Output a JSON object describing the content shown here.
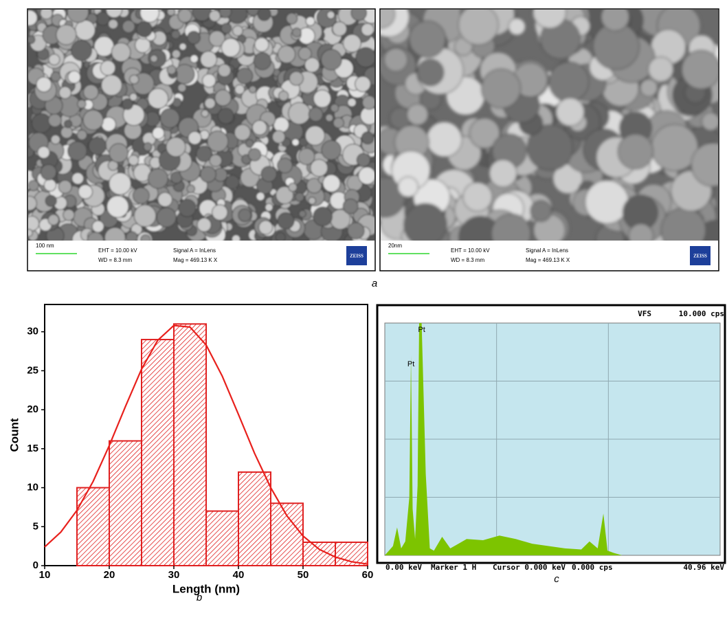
{
  "sem_panels": [
    {
      "scale": "100 nm",
      "eht": "EHT = 10.00 kV",
      "wd": "WD = 8.3 mm",
      "signal": "Signal A = InLens",
      "mag": "Mag = 469.13 K X",
      "logo": "ZEISS"
    },
    {
      "scale": "20nm",
      "eht": "EHT = 10.00 kV",
      "wd": "WD = 8.3 mm",
      "signal": "Signal A = InLens",
      "mag": "Mag = 469.13 K X",
      "logo": "ZEISS"
    }
  ],
  "panel_labels": [
    "a",
    "b",
    "c"
  ],
  "chart_data": [
    {
      "type": "histogram",
      "xlabel": "Length (nm)",
      "ylabel": "Count",
      "bins": [
        15,
        20,
        25,
        30,
        35,
        40,
        45,
        50,
        55,
        60
      ],
      "values": [
        10,
        16,
        29,
        31,
        7,
        12,
        8,
        3,
        3
      ],
      "color": "#e02020",
      "xlim": [
        10,
        60
      ],
      "ylim": [
        0,
        33.5
      ],
      "xticks": [
        10,
        20,
        30,
        40,
        50,
        60
      ],
      "yticks": [
        0,
        5,
        10,
        15,
        20,
        25,
        30
      ],
      "fit": {
        "color": "#e8201c",
        "x": [
          10,
          12.5,
          15,
          17.5,
          20,
          22.5,
          25,
          27.5,
          30,
          32.5,
          35,
          37.5,
          40,
          42.5,
          45,
          47.5,
          50,
          52.5,
          55,
          57.5,
          60
        ],
        "values": [
          2.4,
          4.3,
          7.1,
          10.8,
          15.4,
          20.4,
          25.2,
          28.9,
          30.8,
          30.6,
          28.3,
          24.3,
          19.4,
          14.4,
          10.0,
          6.4,
          3.8,
          2.1,
          1.1,
          0.5,
          0.2
        ]
      }
    },
    {
      "type": "area",
      "color": "#7dc400",
      "background": "#c5e6ee",
      "xlim": [
        0,
        40.96
      ],
      "ylim": [
        0,
        10000
      ],
      "x": [
        0,
        0.5,
        1,
        1.5,
        2,
        2.5,
        3,
        3.2,
        3.4,
        3.7,
        4.0,
        4.2,
        4.5,
        5,
        5.5,
        6,
        7,
        8,
        9,
        10,
        12,
        14,
        16,
        18,
        20,
        22,
        24,
        25,
        26,
        26.7,
        27.2,
        28,
        29,
        30,
        35,
        40.96
      ],
      "values": [
        0,
        200,
        400,
        1200,
        300,
        600,
        2500,
        8600,
        2000,
        700,
        3000,
        10000,
        10000,
        3500,
        300,
        200,
        800,
        300,
        500,
        700,
        650,
        850,
        700,
        500,
        400,
        300,
        250,
        600,
        300,
        1800,
        200,
        100,
        0,
        0,
        0,
        0
      ],
      "header": [
        "VFS",
        "10.000 cps"
      ],
      "footer": [
        "0.00 keV",
        "Marker 1 H",
        "Cursor 0.000 keV",
        "0.000 cps",
        "40.96 keV"
      ],
      "annotations": [
        {
          "text": "Pt",
          "x": 3.2,
          "y": 8225
        },
        {
          "text": "Pt",
          "x": 4.5,
          "y": 9700
        }
      ]
    }
  ]
}
